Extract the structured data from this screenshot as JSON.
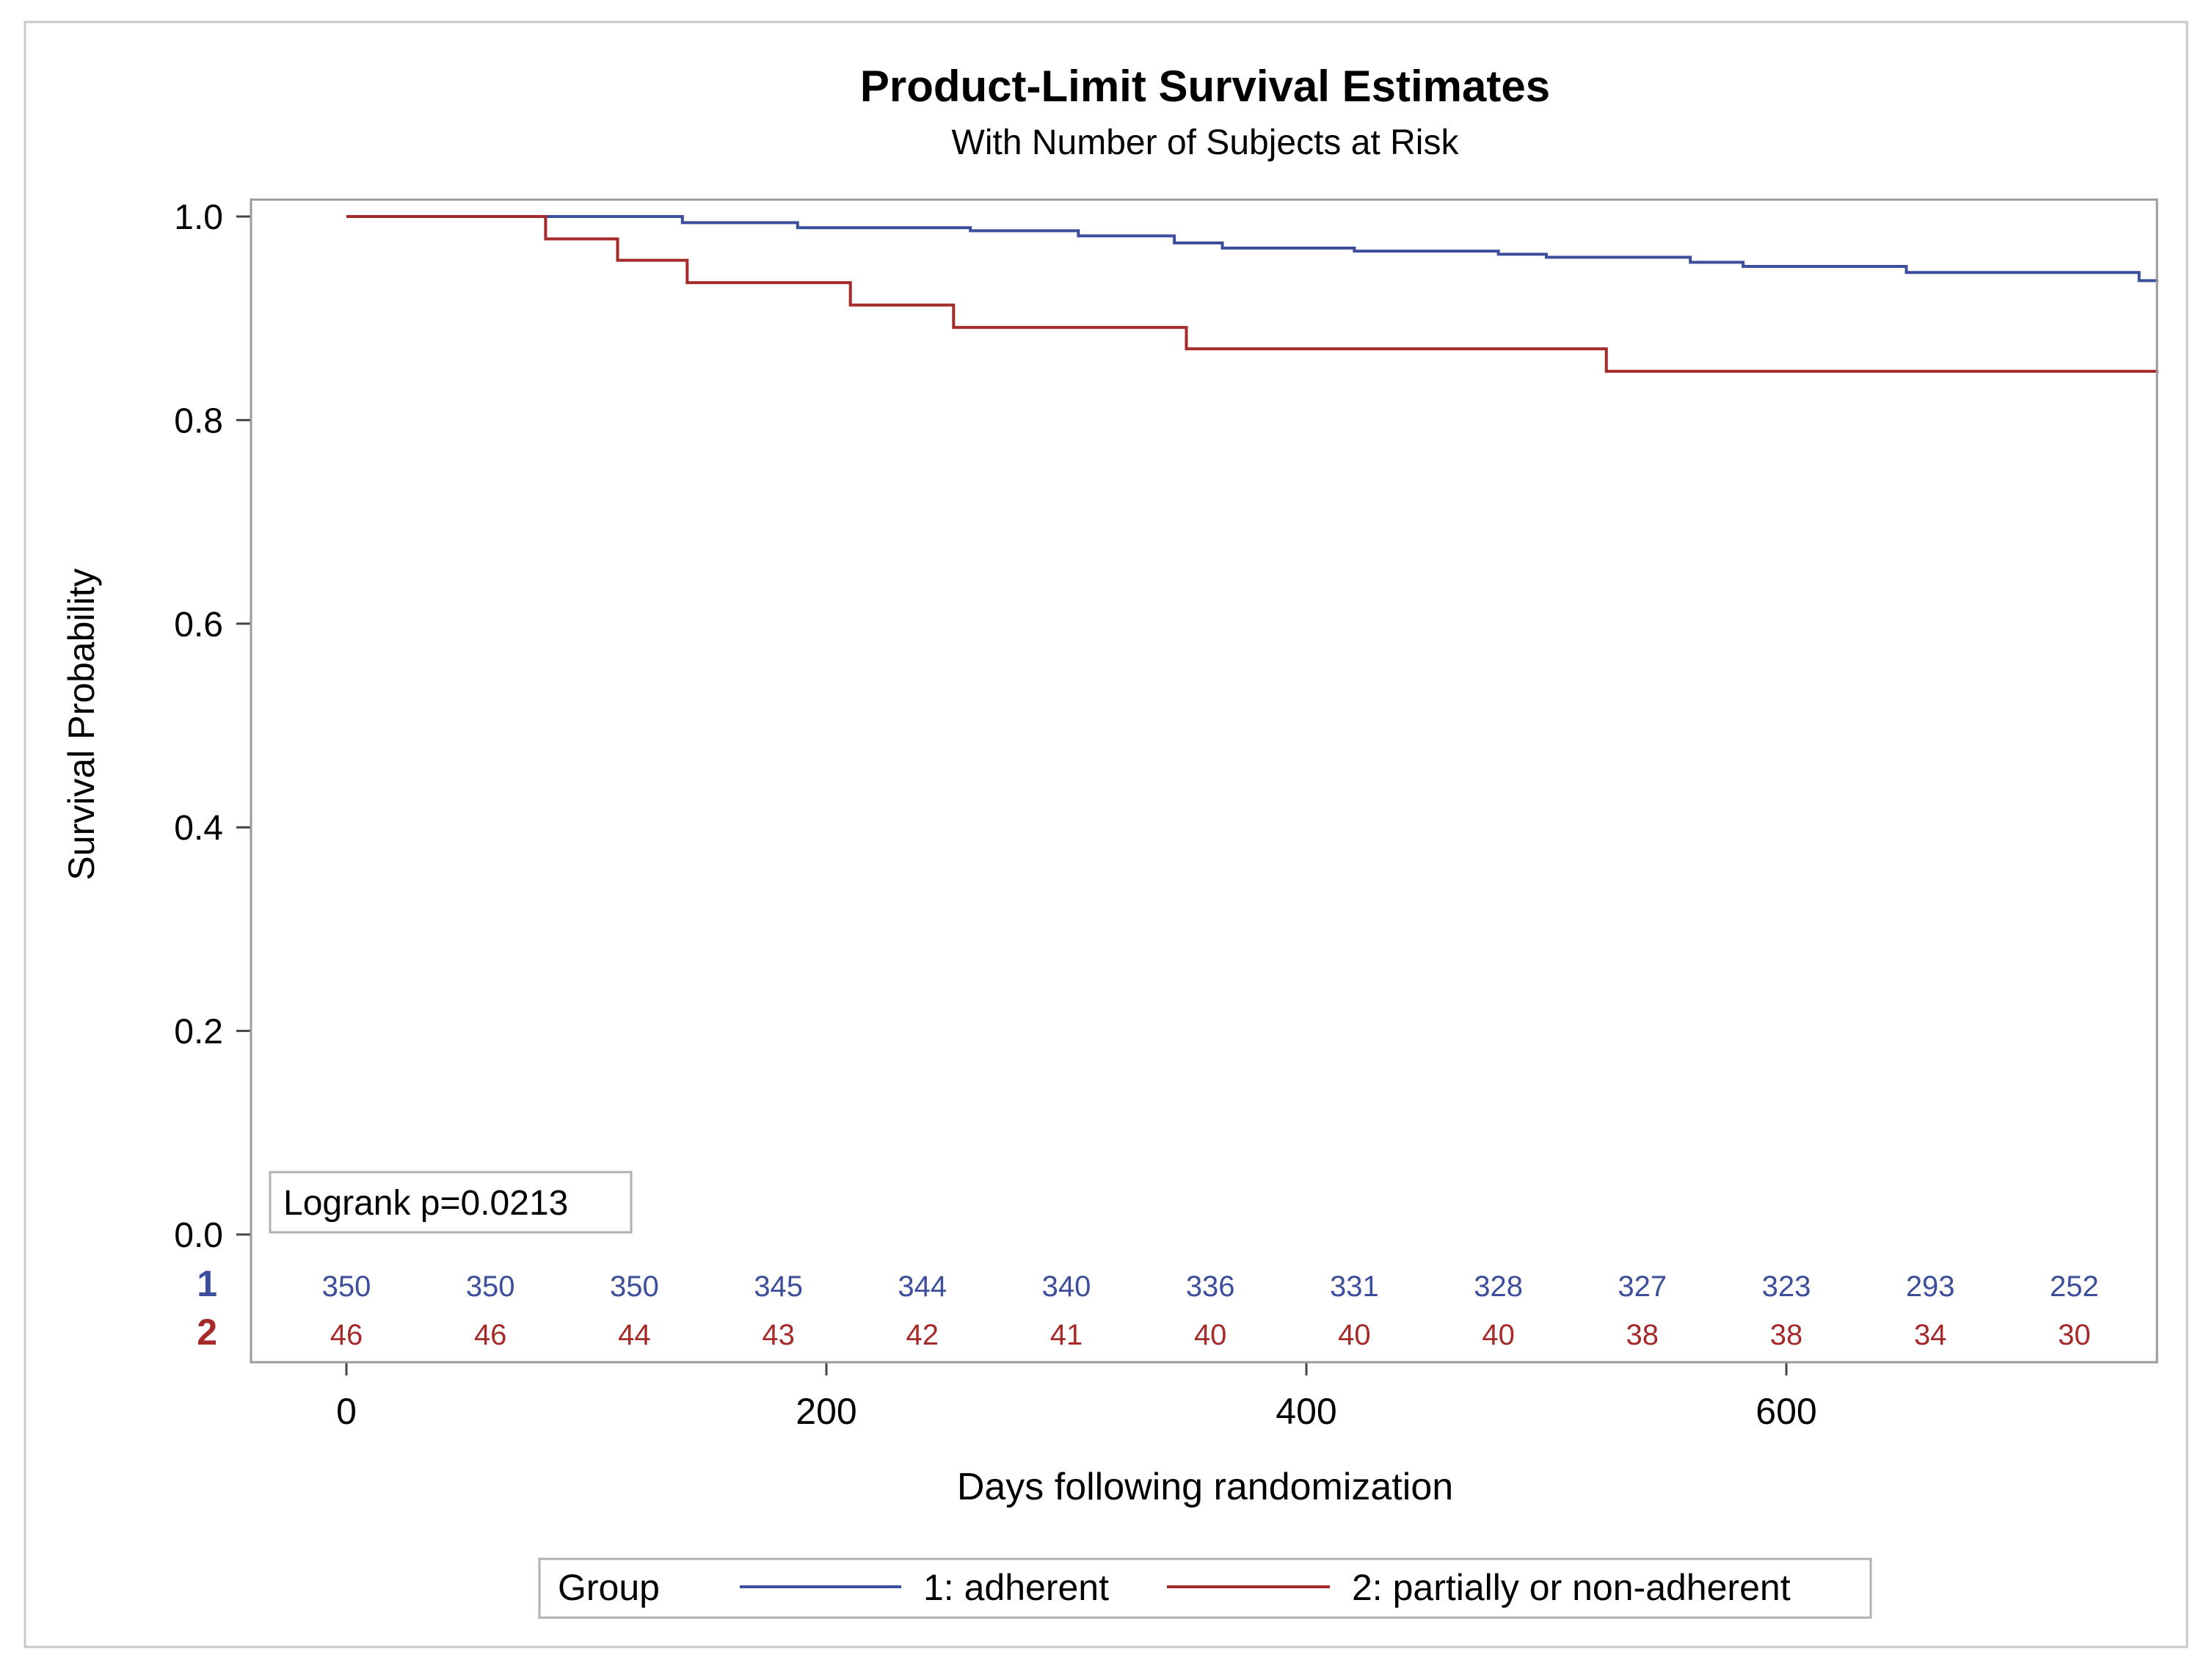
{
  "chart_data": {
    "type": "line",
    "subtype": "step",
    "title": "Product-Limit Survival Estimates",
    "subtitle": "With Number of Subjects at Risk",
    "xlabel": "Days following randomization",
    "ylabel": "Survival Probability",
    "xlim": [
      -20,
      755
    ],
    "ylim": [
      0,
      1.0
    ],
    "xticks": [
      0,
      200,
      400,
      600
    ],
    "xtick_labels": [
      "0",
      "200",
      "400",
      "600"
    ],
    "yticks": [
      0.0,
      0.2,
      0.4,
      0.6,
      0.8,
      1.0
    ],
    "ytick_labels": [
      "0.0",
      "0.2",
      "0.4",
      "0.6",
      "0.8",
      "1.0"
    ],
    "annotation": "Logrank p=0.0213",
    "legend": {
      "title": "Group",
      "position": "bottom"
    },
    "series": [
      {
        "id": "1",
        "name": "1: adherent",
        "color": "#3c4e9c",
        "x": [
          0,
          135,
          140,
          188,
          260,
          305,
          345,
          365,
          420,
          480,
          500,
          560,
          582,
          650,
          747,
          755
        ],
        "y": [
          1.0,
          1.0,
          0.994,
          0.989,
          0.986,
          0.981,
          0.974,
          0.969,
          0.966,
          0.963,
          0.96,
          0.955,
          0.951,
          0.945,
          0.937,
          0.937
        ]
      },
      {
        "id": "2",
        "name": "2: partially or non-adherent",
        "color": "#a52a2a",
        "x": [
          0,
          83,
          113,
          142,
          210,
          253,
          350,
          525,
          755
        ],
        "y": [
          1.0,
          0.978,
          0.957,
          0.935,
          0.913,
          0.891,
          0.87,
          0.848,
          0.848
        ]
      }
    ],
    "at_risk": {
      "times": [
        0,
        60,
        120,
        180,
        240,
        300,
        360,
        420,
        480,
        540,
        600,
        660,
        720
      ],
      "rows": [
        {
          "label": "1",
          "color": "#3c4e9c",
          "values": [
            "350",
            "350",
            "350",
            "345",
            "344",
            "340",
            "336",
            "331",
            "328",
            "327",
            "323",
            "293",
            "252"
          ]
        },
        {
          "label": "2",
          "color": "#a52a2a",
          "values": [
            "46",
            "46",
            "44",
            "43",
            "42",
            "41",
            "40",
            "40",
            "40",
            "38",
            "38",
            "34",
            "30"
          ]
        }
      ]
    }
  }
}
